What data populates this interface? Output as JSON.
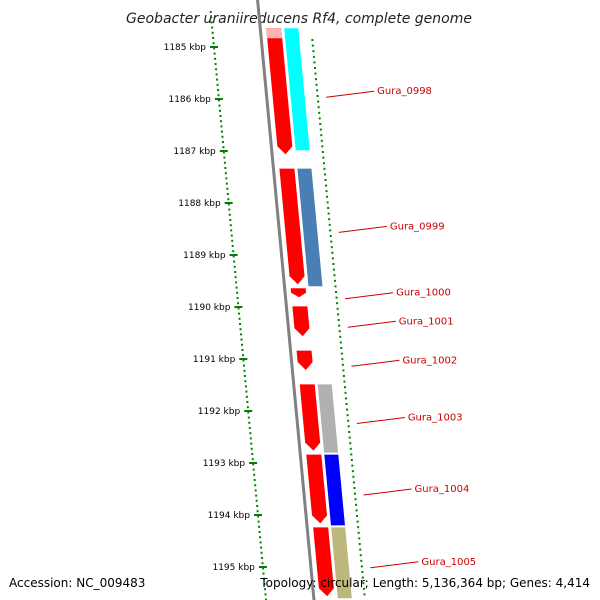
{
  "title": "Geobacter uraniireducens Rf4, complete genome",
  "accession": "Accession: NC_009483",
  "topology": "Topology: circular; Length: 5,136,364 bp; Genes: 4,414",
  "colors": {
    "cds": "#ff0000",
    "cds_light": "#ffb3b3",
    "cog_cyan": "#00ffff",
    "cog_steelblue": "#4a7fb5",
    "cog_gray": "#b0b0b0",
    "cog_blue": "#0000ff",
    "cog_khaki": "#bdb77b",
    "tick": "#008000",
    "label": "#cc0000",
    "backbone": "#808080"
  },
  "ticks": [
    "1185 kbp",
    "1186 kbp",
    "1187 kbp",
    "1188 kbp",
    "1189 kbp",
    "1190 kbp",
    "1191 kbp",
    "1192 kbp",
    "1193 kbp",
    "1194 kbp",
    "1195 kbp"
  ],
  "genes": [
    {
      "label": "Gura_0998",
      "start": 1184.6,
      "end": 1187.1,
      "cog": "cog_cyan"
    },
    {
      "label": "Gura_0999",
      "start": 1187.3,
      "end": 1189.6,
      "cog": "cog_steelblue"
    },
    {
      "label": "Gura_1000",
      "start": 1189.6,
      "end": 1189.85,
      "cog": null
    },
    {
      "label": "Gura_1001",
      "start": 1189.95,
      "end": 1190.6,
      "cog": null
    },
    {
      "label": "Gura_1002",
      "start": 1190.8,
      "end": 1191.25,
      "cog": null
    },
    {
      "label": "Gura_1003",
      "start": 1191.45,
      "end": 1192.8,
      "cog": "cog_gray"
    },
    {
      "label": "Gura_1004",
      "start": 1192.8,
      "end": 1194.2,
      "cog": "cog_blue"
    },
    {
      "label": "Gura_1005",
      "start": 1194.2,
      "end": 1195.6,
      "cog": "cog_khaki"
    }
  ]
}
